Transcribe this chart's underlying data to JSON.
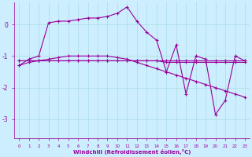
{
  "xlabel": "Windchill (Refroidissement éolien,°C)",
  "background_color": "#cceeff",
  "line_color": "#990099",
  "x": [
    0,
    1,
    2,
    3,
    4,
    5,
    6,
    7,
    8,
    9,
    10,
    11,
    12,
    13,
    14,
    15,
    16,
    17,
    18,
    19,
    20,
    21,
    22,
    23
  ],
  "y_main": [
    -1.3,
    -1.1,
    -1.0,
    0.05,
    0.1,
    0.1,
    0.15,
    0.2,
    0.2,
    0.25,
    0.35,
    0.55,
    0.1,
    -0.25,
    -0.5,
    -1.5,
    -0.65,
    -2.2,
    -1.0,
    -1.1,
    -2.85,
    -2.4,
    -1.0,
    -1.15
  ],
  "y_flat": [
    -1.15,
    -1.15,
    -1.15,
    -1.15,
    -1.15,
    -1.15,
    -1.15,
    -1.15,
    -1.15,
    -1.15,
    -1.15,
    -1.15,
    -1.15,
    -1.15,
    -1.15,
    -1.15,
    -1.15,
    -1.15,
    -1.15,
    -1.15,
    -1.15,
    -1.15,
    -1.15,
    -1.15
  ],
  "y_diag": [
    -1.3,
    -1.2,
    -1.15,
    -1.1,
    -1.05,
    -1.0,
    -1.0,
    -1.0,
    -1.0,
    -1.0,
    -1.05,
    -1.1,
    -1.2,
    -1.3,
    -1.4,
    -1.5,
    -1.6,
    -1.7,
    -1.8,
    -1.9,
    -2.0,
    -2.1,
    -2.2,
    -2.3
  ],
  "y_min_line": [
    -1.15,
    -1.15,
    -1.15,
    -1.15,
    -1.15,
    -1.15,
    -1.15,
    -1.15,
    -1.15,
    -1.15,
    -1.15,
    -1.15,
    -1.15,
    -1.15,
    -1.15,
    -1.2,
    -1.2,
    -1.2,
    -1.2,
    -1.2,
    -1.2,
    -1.2,
    -1.2,
    -1.2
  ],
  "xlim": [
    -0.5,
    23.5
  ],
  "ylim": [
    -3.6,
    0.7
  ],
  "yticks": [
    0,
    -1,
    -2,
    -3
  ],
  "xticks": [
    0,
    1,
    2,
    3,
    4,
    5,
    6,
    7,
    8,
    9,
    10,
    11,
    12,
    13,
    14,
    15,
    16,
    17,
    18,
    19,
    20,
    21,
    22,
    23
  ],
  "grid_color": "#aadddd",
  "tick_color": "#990099",
  "label_color": "#990099",
  "axis_color": "#990099"
}
